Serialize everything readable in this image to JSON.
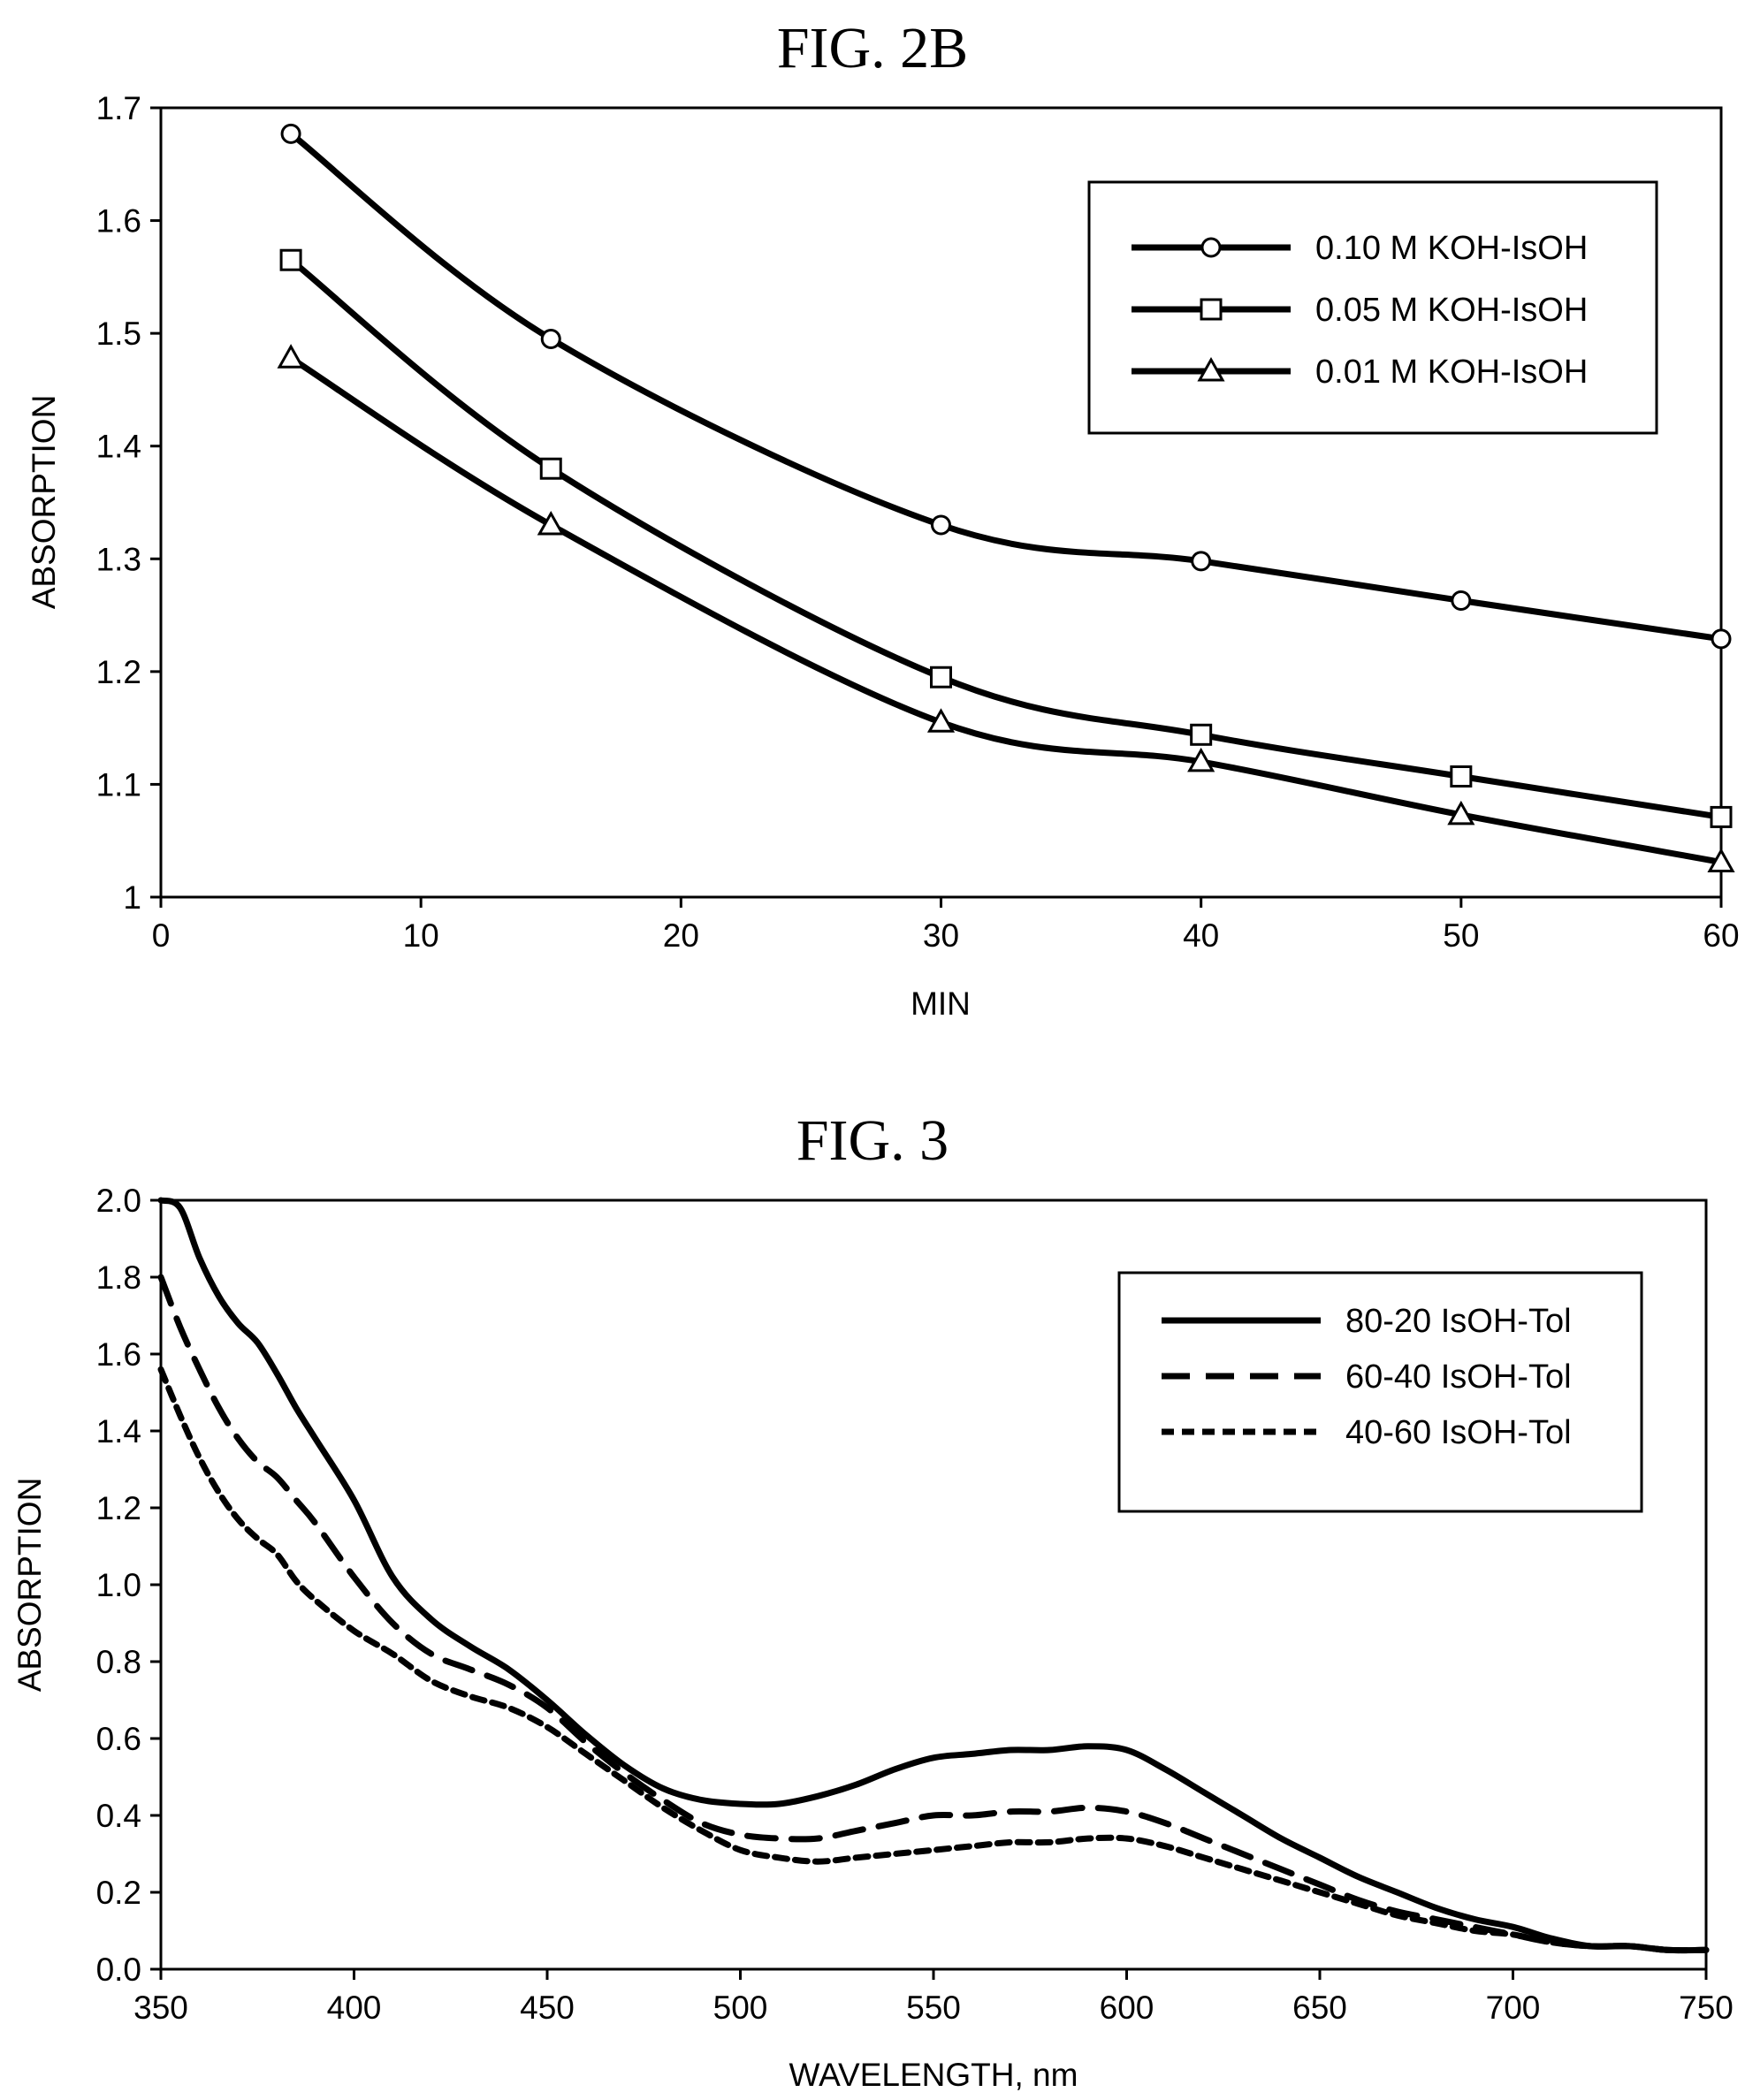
{
  "chart_data": [
    {
      "type": "line",
      "title": "FIG. 2B",
      "xlabel": "MIN",
      "ylabel": "ABSORPTION",
      "xlim": [
        0,
        60
      ],
      "ylim": [
        1,
        1.7
      ],
      "xticks": [
        "0",
        "10",
        "20",
        "30",
        "40",
        "50",
        "60"
      ],
      "yticks": [
        "1",
        "1.1",
        "1.2",
        "1.3",
        "1.4",
        "1.5",
        "1.6",
        "1.7"
      ],
      "grid": false,
      "legend_position": "top-right",
      "x": [
        5,
        15,
        30,
        40,
        50,
        60
      ],
      "series": [
        {
          "name": "0.10 M KOH-IsOH",
          "marker": "circle",
          "values": [
            1.677,
            1.495,
            1.33,
            1.298,
            1.263,
            1.229
          ]
        },
        {
          "name": "0.05 M KOH-IsOH",
          "marker": "square",
          "values": [
            1.565,
            1.38,
            1.195,
            1.144,
            1.107,
            1.071
          ]
        },
        {
          "name": "0.01 M KOH-IsOH",
          "marker": "triangle",
          "values": [
            1.478,
            1.33,
            1.155,
            1.12,
            1.073,
            1.031
          ]
        }
      ]
    },
    {
      "type": "line",
      "title": "FIG. 3",
      "xlabel": "WAVELENGTH, nm",
      "ylabel": "ABSORPTION",
      "xlim": [
        350,
        750
      ],
      "ylim": [
        0,
        2.0
      ],
      "xticks": [
        "350",
        "400",
        "450",
        "500",
        "550",
        "600",
        "650",
        "700",
        "750"
      ],
      "yticks": [
        "0.0",
        "0.2",
        "0.4",
        "0.6",
        "0.8",
        "1.0",
        "1.2",
        "1.4",
        "1.6",
        "1.8",
        "2.0"
      ],
      "grid": false,
      "legend_position": "top-right",
      "x": [
        350,
        355,
        360,
        365,
        370,
        375,
        380,
        385,
        390,
        400,
        410,
        420,
        430,
        440,
        450,
        460,
        470,
        480,
        490,
        500,
        510,
        520,
        530,
        540,
        550,
        560,
        570,
        580,
        590,
        600,
        610,
        620,
        630,
        640,
        650,
        660,
        670,
        680,
        690,
        700,
        710,
        720,
        730,
        740,
        750
      ],
      "series": [
        {
          "name": "80-20 IsOH-Tol",
          "style": "solid",
          "values": [
            2.05,
            1.98,
            1.85,
            1.75,
            1.68,
            1.63,
            1.55,
            1.46,
            1.38,
            1.22,
            1.02,
            0.91,
            0.84,
            0.78,
            0.7,
            0.61,
            0.53,
            0.47,
            0.44,
            0.43,
            0.43,
            0.45,
            0.48,
            0.52,
            0.55,
            0.56,
            0.57,
            0.57,
            0.58,
            0.57,
            0.52,
            0.46,
            0.4,
            0.34,
            0.29,
            0.24,
            0.2,
            0.16,
            0.13,
            0.11,
            0.08,
            0.06,
            0.06,
            0.05,
            0.05
          ]
        },
        {
          "name": "60-40 IsOH-Tol",
          "style": "dashed",
          "values": [
            1.8,
            1.67,
            1.56,
            1.46,
            1.38,
            1.32,
            1.28,
            1.22,
            1.16,
            1.02,
            0.9,
            0.82,
            0.78,
            0.74,
            0.68,
            0.59,
            0.51,
            0.44,
            0.38,
            0.35,
            0.34,
            0.34,
            0.36,
            0.38,
            0.4,
            0.4,
            0.41,
            0.41,
            0.42,
            0.41,
            0.38,
            0.34,
            0.3,
            0.26,
            0.22,
            0.18,
            0.15,
            0.13,
            0.11,
            0.09,
            0.07,
            0.06,
            0.06,
            0.05,
            0.05
          ]
        },
        {
          "name": "40-60 IsOH-Tol",
          "style": "dotted",
          "values": [
            1.56,
            1.44,
            1.33,
            1.24,
            1.17,
            1.12,
            1.08,
            1.01,
            0.96,
            0.88,
            0.82,
            0.75,
            0.71,
            0.68,
            0.63,
            0.56,
            0.49,
            0.42,
            0.36,
            0.31,
            0.29,
            0.28,
            0.29,
            0.3,
            0.31,
            0.32,
            0.33,
            0.33,
            0.34,
            0.34,
            0.32,
            0.29,
            0.26,
            0.23,
            0.2,
            0.17,
            0.14,
            0.12,
            0.1,
            0.09,
            0.07,
            0.06,
            0.06,
            0.05,
            0.05
          ]
        }
      ]
    }
  ]
}
